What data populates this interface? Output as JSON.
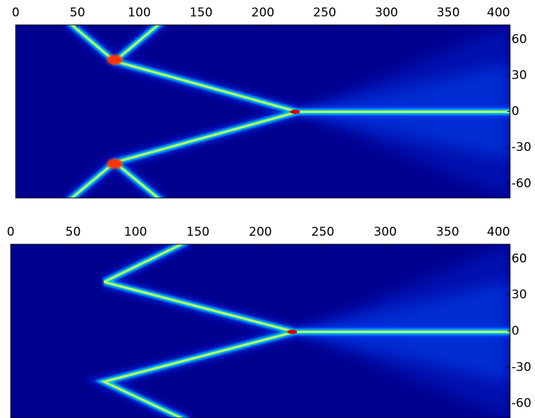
{
  "chart_data": [
    {
      "type": "heatmap",
      "xlim": [
        0,
        400
      ],
      "ylim": [
        -72,
        72
      ],
      "xticks": [
        0,
        50,
        100,
        150,
        200,
        250,
        300,
        350,
        400
      ],
      "yticks": [
        60,
        30,
        0,
        -30,
        -60
      ]
    },
    {
      "type": "heatmap",
      "xlim": [
        0,
        400
      ],
      "ylim": [
        -72,
        72
      ],
      "xticks": [
        0,
        50,
        100,
        150,
        200,
        250,
        300,
        350,
        400
      ],
      "yticks": [
        60,
        30,
        0,
        -30,
        -60
      ]
    }
  ]
}
